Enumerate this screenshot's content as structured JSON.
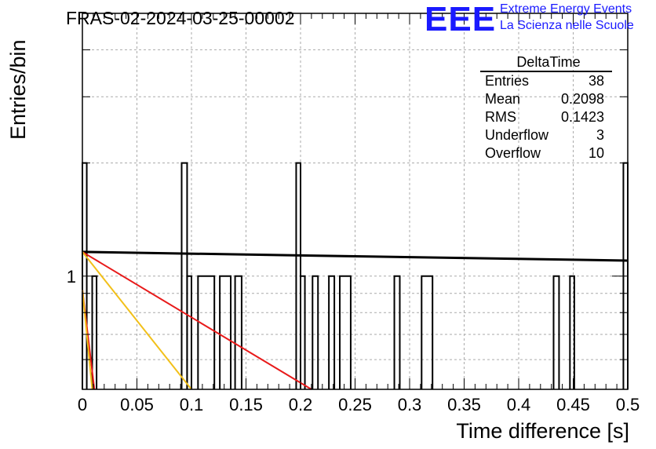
{
  "title": "FRAS-02-2024-03-25-00002",
  "logo": {
    "letters": "EEE",
    "line1": "Extreme Energy Events",
    "line2": "La Scienza nelle Scuole"
  },
  "stats": {
    "name": "DeltaTime",
    "rows": [
      {
        "label": "Entries",
        "value": "38"
      },
      {
        "label": "Mean",
        "value": "0.2098"
      },
      {
        "label": "RMS",
        "value": "0.1423"
      },
      {
        "label": "Underflow",
        "value": "3"
      },
      {
        "label": "Overflow",
        "value": "10"
      }
    ]
  },
  "chart_data": {
    "type": "histogram",
    "title": "FRAS-02-2024-03-25-00002",
    "xlabel": "Time difference [s]",
    "ylabel": "Entries/bin",
    "xlim": [
      0,
      0.5
    ],
    "ylog": true,
    "grid": true,
    "x_ticks": [
      0,
      0.05,
      0.1,
      0.15,
      0.2,
      0.25,
      0.3,
      0.35,
      0.4,
      0.45,
      0.5
    ],
    "x_tick_labels": [
      "0",
      "0.05",
      "0.1",
      "0.15",
      "0.2",
      "0.25",
      "0.3",
      "0.35",
      "0.4",
      "0.45",
      "0.5"
    ],
    "y_tick_labels": [
      "1"
    ],
    "bins": [
      {
        "x0": 0.0,
        "x1": 0.004,
        "count": 2
      },
      {
        "x0": 0.009,
        "x1": 0.013,
        "count": 1
      },
      {
        "x0": 0.091,
        "x1": 0.096,
        "count": 2
      },
      {
        "x0": 0.096,
        "x1": 0.1,
        "count": 1
      },
      {
        "x0": 0.106,
        "x1": 0.121,
        "count": 1
      },
      {
        "x0": 0.126,
        "x1": 0.136,
        "count": 1
      },
      {
        "x0": 0.14,
        "x1": 0.146,
        "count": 1
      },
      {
        "x0": 0.196,
        "x1": 0.2,
        "count": 2
      },
      {
        "x0": 0.2,
        "x1": 0.204,
        "count": 1
      },
      {
        "x0": 0.211,
        "x1": 0.216,
        "count": 1
      },
      {
        "x0": 0.226,
        "x1": 0.231,
        "count": 1
      },
      {
        "x0": 0.236,
        "x1": 0.246,
        "count": 1
      },
      {
        "x0": 0.286,
        "x1": 0.291,
        "count": 1
      },
      {
        "x0": 0.311,
        "x1": 0.321,
        "count": 1
      },
      {
        "x0": 0.432,
        "x1": 0.437,
        "count": 1
      },
      {
        "x0": 0.447,
        "x1": 0.451,
        "count": 1
      },
      {
        "x0": 0.496,
        "x1": 0.5,
        "count": 2
      }
    ],
    "fits": [
      {
        "color": "#000000",
        "points": [
          [
            0.0,
            1.16
          ],
          [
            0.5,
            1.1
          ]
        ]
      },
      {
        "color": "#e81a1a",
        "points": [
          [
            0.0,
            1.16
          ],
          [
            0.21,
            0.5
          ]
        ]
      },
      {
        "color": "#f2c01a",
        "points": [
          [
            0.0,
            1.16
          ],
          [
            0.1,
            0.5
          ]
        ]
      },
      {
        "color": "#e81a1a",
        "points": [
          [
            0.0,
            0.92
          ],
          [
            0.011,
            0.5
          ]
        ]
      },
      {
        "color": "#f2c01a",
        "points": [
          [
            0.0,
            0.92
          ],
          [
            0.009,
            0.5
          ]
        ]
      }
    ]
  }
}
